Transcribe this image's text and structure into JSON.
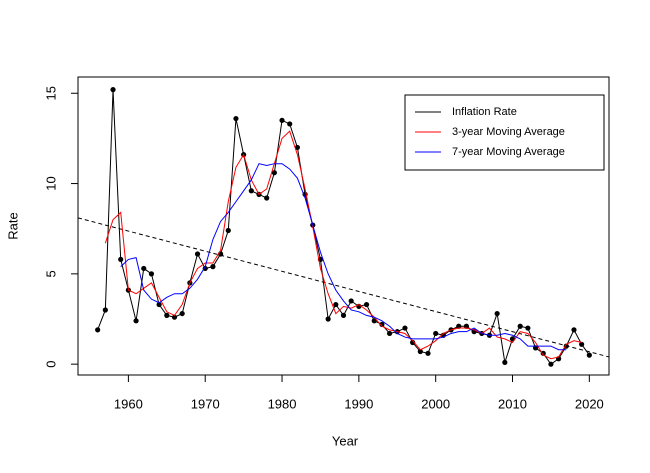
{
  "chart_data": {
    "type": "line",
    "xlabel": "Year",
    "ylabel": "Rate",
    "x": [
      1956,
      1957,
      1958,
      1959,
      1960,
      1961,
      1962,
      1963,
      1964,
      1965,
      1966,
      1967,
      1968,
      1969,
      1970,
      1971,
      1972,
      1973,
      1974,
      1975,
      1976,
      1977,
      1978,
      1979,
      1980,
      1981,
      1982,
      1983,
      1984,
      1985,
      1986,
      1987,
      1988,
      1989,
      1990,
      1991,
      1992,
      1993,
      1994,
      1995,
      1996,
      1997,
      1998,
      1999,
      2000,
      2001,
      2002,
      2003,
      2004,
      2005,
      2006,
      2007,
      2008,
      2009,
      2010,
      2011,
      2012,
      2013,
      2014,
      2015,
      2016,
      2017,
      2018,
      2019,
      2020
    ],
    "series": [
      {
        "name": "Inflation Rate",
        "color": "#000000",
        "markers": true,
        "values": [
          1.9,
          3.0,
          15.2,
          5.8,
          4.1,
          2.4,
          5.3,
          5.0,
          3.3,
          2.7,
          2.6,
          2.8,
          4.5,
          6.1,
          5.3,
          5.4,
          6.1,
          7.4,
          13.6,
          11.6,
          9.6,
          9.4,
          9.2,
          10.6,
          13.5,
          13.3,
          12.0,
          9.4,
          7.7,
          5.8,
          2.5,
          3.3,
          2.7,
          3.5,
          3.2,
          3.3,
          2.4,
          2.2,
          1.7,
          1.8,
          2.0,
          1.2,
          0.7,
          0.6,
          1.7,
          1.6,
          1.9,
          2.1,
          2.1,
          1.8,
          1.7,
          1.6,
          2.8,
          0.1,
          1.4,
          2.1,
          2.0,
          0.9,
          0.6,
          0.0,
          0.3,
          1.0,
          1.9,
          1.1,
          0.5
        ]
      },
      {
        "name": "3-year Moving Average",
        "color": "#ff0000",
        "markers": false,
        "values": [
          null,
          6.7,
          8.0,
          8.4,
          4.1,
          3.9,
          4.2,
          4.5,
          3.7,
          2.9,
          2.7,
          3.3,
          4.5,
          5.3,
          5.6,
          5.6,
          6.3,
          9.0,
          10.9,
          11.6,
          10.2,
          9.4,
          9.7,
          11.1,
          12.5,
          12.9,
          11.6,
          9.7,
          7.6,
          5.3,
          3.9,
          2.8,
          3.2,
          3.1,
          3.3,
          3.0,
          2.6,
          2.1,
          1.9,
          1.8,
          1.7,
          1.3,
          0.8,
          1.0,
          1.3,
          1.7,
          1.9,
          2.0,
          2.0,
          1.9,
          1.7,
          2.0,
          1.5,
          1.4,
          1.2,
          1.8,
          1.7,
          1.2,
          0.5,
          0.3,
          0.4,
          1.1,
          1.3,
          1.2,
          null
        ]
      },
      {
        "name": "7-year Moving Average",
        "color": "#0000ff",
        "markers": false,
        "values": [
          null,
          null,
          null,
          5.4,
          5.8,
          5.9,
          4.1,
          3.6,
          3.4,
          3.7,
          3.9,
          3.9,
          4.2,
          4.7,
          5.4,
          6.9,
          7.9,
          8.4,
          9.0,
          9.6,
          10.2,
          11.1,
          11.0,
          11.1,
          11.1,
          10.8,
          10.3,
          9.2,
          7.7,
          6.2,
          5.0,
          4.1,
          3.5,
          3.0,
          2.9,
          2.7,
          2.6,
          2.4,
          2.1,
          1.7,
          1.5,
          1.4,
          1.4,
          1.4,
          1.4,
          1.5,
          1.7,
          1.8,
          1.8,
          2.0,
          1.7,
          1.6,
          1.6,
          1.7,
          1.6,
          1.4,
          1.0,
          1.0,
          1.0,
          1.0,
          0.8,
          0.8,
          null,
          null,
          null
        ]
      }
    ],
    "trend_line": {
      "x": [
        1953.44,
        2022.56
      ],
      "y": [
        8.1,
        0.4
      ],
      "color": "#000000",
      "style": "dashed"
    },
    "xlim": [
      1953.44,
      2022.56
    ],
    "xticks": [
      1960,
      1970,
      1980,
      1990,
      2000,
      2010,
      2020
    ],
    "ylim": [
      -0.6,
      15.9
    ],
    "yticks": [
      0,
      5,
      10,
      15
    ],
    "legend": "topright",
    "grid": false
  }
}
